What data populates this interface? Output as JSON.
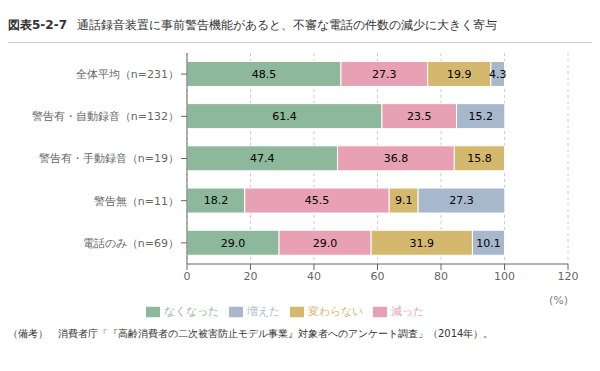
{
  "chart_data": {
    "type": "bar",
    "title": "通話録音装置に事前警告機能があると、不審な電話の件数の減少に大きく寄与",
    "annotations": [
      "図表5-2-7",
      "（備考）　消費者庁「『高齢消費者の二次被害防止モデル事業』対象者へのアンケート調査」（2014年）。"
    ],
    "xlabel": "(%)",
    "orientation": "horizontal",
    "stacked": true,
    "data_labels": true,
    "grid": true,
    "legend": "bottom",
    "categories": [
      "全体平均（n=231）",
      "警告有・自動録音（n=132）",
      "警告有・手動録音（n=19）",
      "警告無（n=11）",
      "電話のみ（n=69）"
    ],
    "series": [
      {
        "name": "なくなった",
        "color": "#8db89b",
        "values": [
          48.5,
          61.4,
          47.4,
          18.2,
          29.0
        ]
      },
      {
        "name": "減った",
        "color": "#e8a0b4",
        "values": [
          27.3,
          23.5,
          36.8,
          45.5,
          29.0
        ]
      },
      {
        "name": "変わらない",
        "color": "#d4b86e",
        "values": [
          19.9,
          0.0,
          15.8,
          9.1,
          31.9
        ]
      },
      {
        "name": "増えた",
        "color": "#a8b8cc",
        "values": [
          4.3,
          15.2,
          0.0,
          27.3,
          10.1
        ]
      }
    ],
    "xlim": [
      0,
      120
    ],
    "xticks": [
      0,
      20,
      40,
      60,
      80,
      100,
      120
    ]
  }
}
